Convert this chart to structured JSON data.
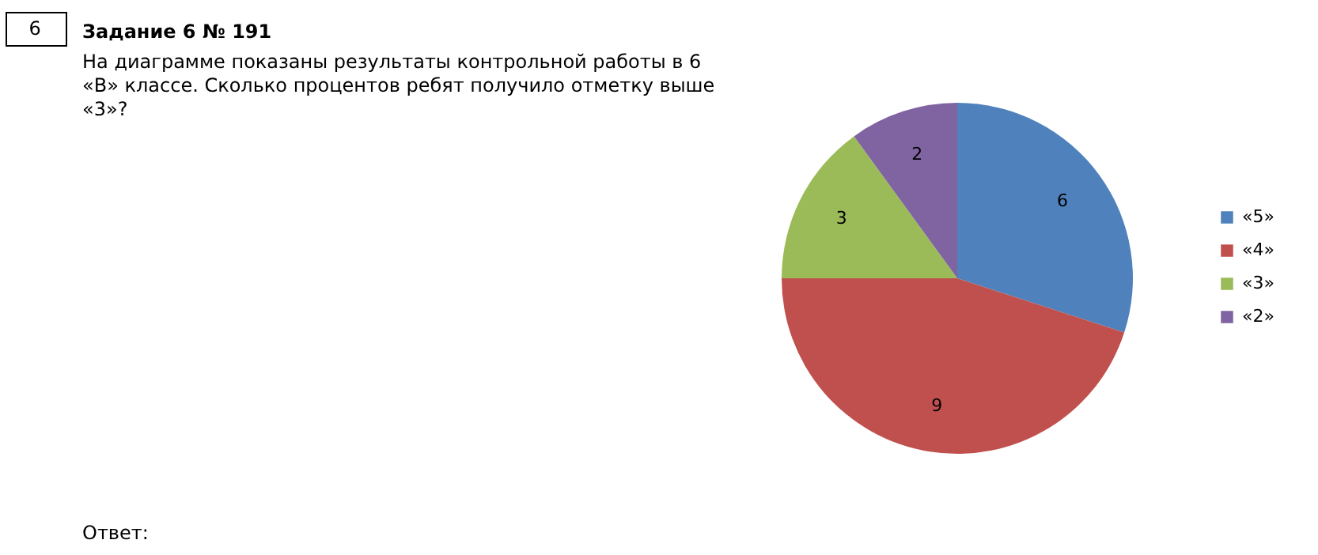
{
  "chart_data": {
    "type": "pie",
    "title": "Задание 6 № 191",
    "subtitle": "На диаграмме показаны результаты контрольной работы в 6 «В» классе. Сколько процентов ребят получило отметку выше «3»?",
    "annotations": [
      "6",
      "Ответ:"
    ],
    "categories": [
      "«5»",
      "«4»",
      "«3»",
      "«2»"
    ],
    "values": [
      6,
      9,
      3,
      2
    ],
    "colors": [
      "#4f81bd",
      "#c0504d",
      "#9bbb59",
      "#8064a2"
    ],
    "data_labels": true,
    "legend": "right"
  }
}
